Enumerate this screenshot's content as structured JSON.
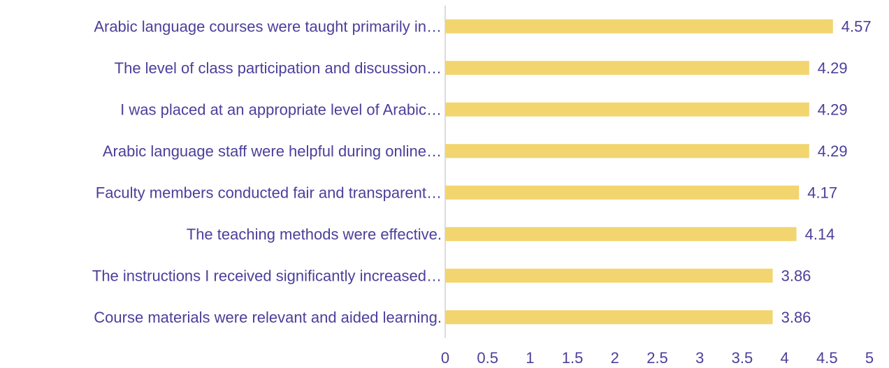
{
  "chart_data": {
    "type": "bar",
    "orientation": "horizontal",
    "categories": [
      "Arabic language courses were taught primarily in…",
      "The level of class participation and discussion…",
      "I was placed at an appropriate level of Arabic…",
      "Arabic language staff were helpful during online…",
      "Faculty members conducted fair and transparent…",
      "The teaching methods were effective.",
      "The instructions I received significantly increased…",
      "Course materials were relevant and aided learning."
    ],
    "values": [
      4.57,
      4.29,
      4.29,
      4.29,
      4.17,
      4.14,
      3.86,
      3.86
    ],
    "color": "#f2d56f",
    "xlim": [
      0,
      5
    ],
    "xticks": [
      0,
      0.5,
      1,
      1.5,
      2,
      2.5,
      3,
      3.5,
      4,
      4.5,
      5
    ],
    "grid": false
  }
}
